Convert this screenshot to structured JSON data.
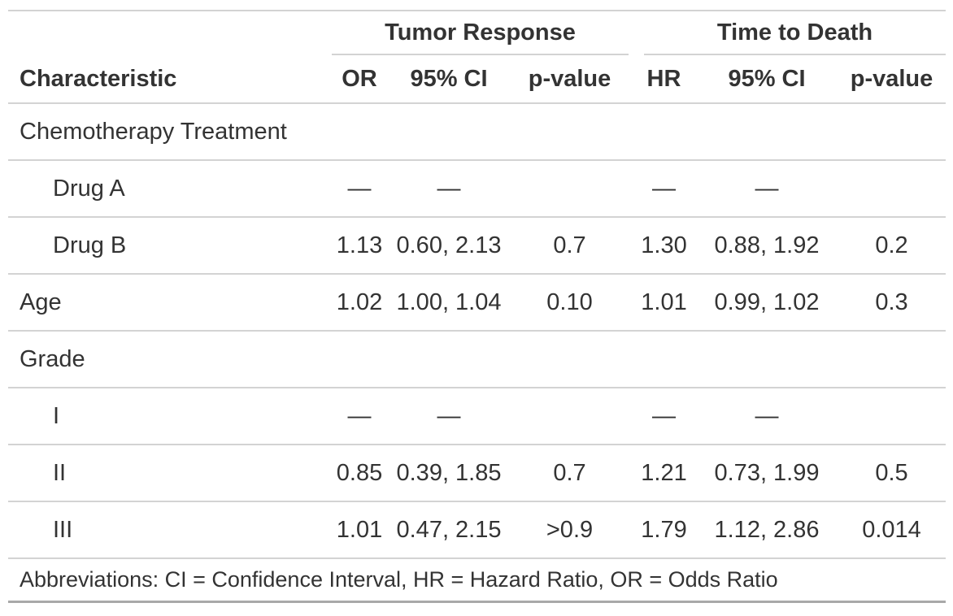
{
  "table": {
    "spanners": [
      {
        "label": "Tumor Response"
      },
      {
        "label": "Time to Death"
      }
    ],
    "columns": [
      "Characteristic",
      "OR",
      "95% CI",
      "p-value",
      "HR",
      "95% CI",
      "p-value"
    ],
    "rows": [
      {
        "label": "Chemotherapy Treatment",
        "indent": false,
        "cells": [
          "",
          "",
          "",
          "",
          "",
          ""
        ]
      },
      {
        "label": "Drug A",
        "indent": true,
        "cells": [
          "—",
          "—",
          "",
          "—",
          "—",
          ""
        ]
      },
      {
        "label": "Drug B",
        "indent": true,
        "cells": [
          "1.13",
          "0.60, 2.13",
          "0.7",
          "1.30",
          "0.88, 1.92",
          "0.2"
        ]
      },
      {
        "label": "Age",
        "indent": false,
        "cells": [
          "1.02",
          "1.00, 1.04",
          "0.10",
          "1.01",
          "0.99, 1.02",
          "0.3"
        ]
      },
      {
        "label": "Grade",
        "indent": false,
        "cells": [
          "",
          "",
          "",
          "",
          "",
          ""
        ]
      },
      {
        "label": "I",
        "indent": true,
        "cells": [
          "—",
          "—",
          "",
          "—",
          "—",
          ""
        ]
      },
      {
        "label": "II",
        "indent": true,
        "cells": [
          "0.85",
          "0.39, 1.85",
          "0.7",
          "1.21",
          "0.73, 1.99",
          "0.5"
        ]
      },
      {
        "label": "III",
        "indent": true,
        "cells": [
          "1.01",
          "0.47, 2.15",
          ">0.9",
          "1.79",
          "1.12, 2.86",
          "0.014"
        ]
      }
    ],
    "footnote": "Abbreviations: CI = Confidence Interval, HR = Hazard Ratio, OR = Odds Ratio",
    "colors": {
      "text": "#333333",
      "line_light": "#D3D3D3",
      "line_dark": "#A8A8A8"
    }
  }
}
